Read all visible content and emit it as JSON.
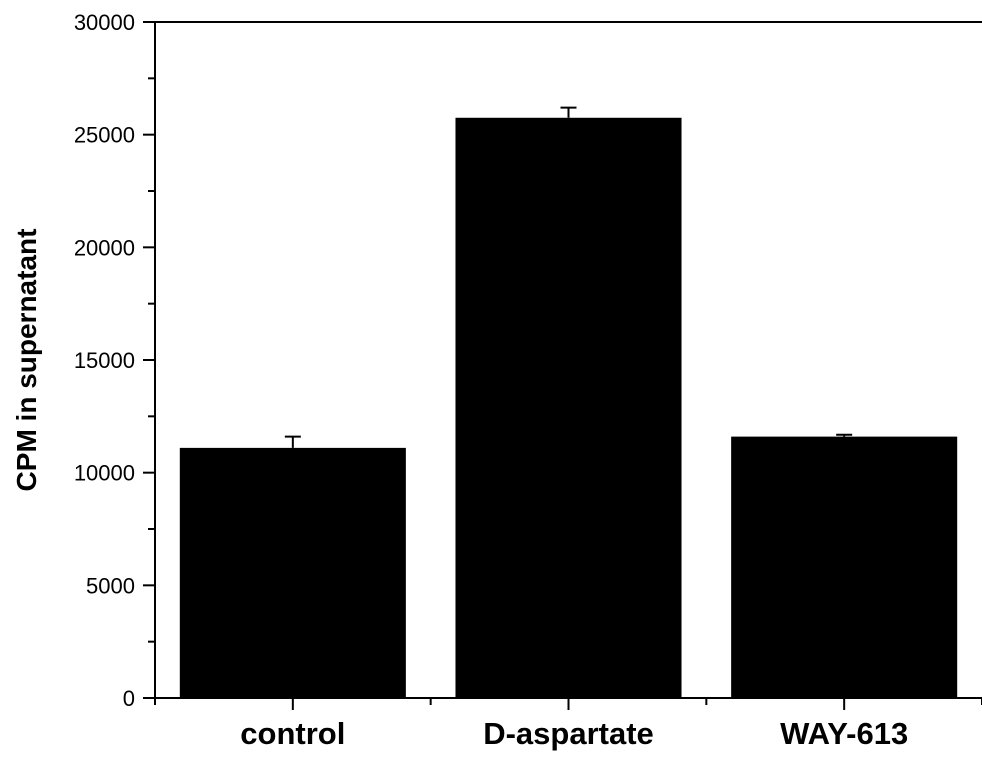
{
  "chart_data": {
    "type": "bar",
    "title": "",
    "xlabel": "",
    "ylabel": "CPM in supernatant",
    "categories": [
      "control",
      "D-aspartate",
      "WAY-613"
    ],
    "values": [
      11100,
      25750,
      11600
    ],
    "errors": [
      500,
      450,
      80
    ],
    "ylim": [
      0,
      30000
    ],
    "yticks": [
      0,
      5000,
      10000,
      15000,
      20000,
      25000,
      30000
    ],
    "yticks_minor_step": 2500,
    "grid": false,
    "bar_color": "#000000"
  }
}
